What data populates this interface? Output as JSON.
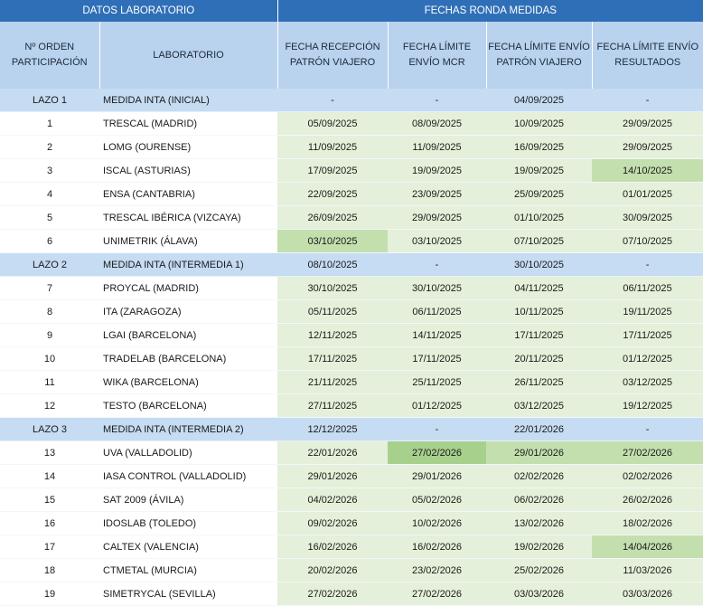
{
  "groups": {
    "left": "DATOS LABORATORIO",
    "right": "FECHAS RONDA MEDIDAS"
  },
  "headers": {
    "orden": "Nº ORDEN PARTICIPACIÓN",
    "laboratorio": "LABORATORIO",
    "recepcion": "FECHA RECEPCIÓN PATRÓN VIAJERO",
    "limite_mcr": "FECHA LÍMITE ENVÍO MCR",
    "limite_patron": "FECHA LÍMITE ENVÍO PATRÓN VIAJERO",
    "limite_resultados": "FECHA LÍMITE ENVÍO RESULTADOS"
  },
  "rows": [
    {
      "type": "loop",
      "orden": "LAZO 1",
      "lab": "MEDIDA INTA (INICIAL)",
      "recepcion": "-",
      "mcr": "-",
      "patron": "04/09/2025",
      "resultados": "-"
    },
    {
      "type": "row",
      "orden": "1",
      "lab": "TRESCAL (MADRID)",
      "recepcion": "05/09/2025",
      "mcr": "08/09/2025",
      "patron": "10/09/2025",
      "resultados": "29/09/2025"
    },
    {
      "type": "row",
      "orden": "2",
      "lab": "LOMG (OURENSE)",
      "recepcion": "11/09/2025",
      "mcr": "11/09/2025",
      "patron": "16/09/2025",
      "resultados": "29/09/2025"
    },
    {
      "type": "row",
      "orden": "3",
      "lab": "ISCAL (ASTURIAS)",
      "recepcion": "17/09/2025",
      "mcr": "19/09/2025",
      "patron": "19/09/2025",
      "resultados": "14/10/2025",
      "hl": [
        "resultados"
      ]
    },
    {
      "type": "row",
      "orden": "4",
      "lab": "ENSA (CANTABRIA)",
      "recepcion": "22/09/2025",
      "mcr": "23/09/2025",
      "patron": "25/09/2025",
      "resultados": "01/01/2025"
    },
    {
      "type": "row",
      "orden": "5",
      "lab": "TRESCAL IBÉRICA (VIZCAYA)",
      "recepcion": "26/09/2025",
      "mcr": "29/09/2025",
      "patron": "01/10/2025",
      "resultados": "30/09/2025"
    },
    {
      "type": "row",
      "orden": "6",
      "lab": "UNIMETRIK (ÁLAVA)",
      "recepcion": "03/10/2025",
      "mcr": "03/10/2025",
      "patron": "07/10/2025",
      "resultados": "07/10/2025",
      "hl": [
        "recepcion"
      ]
    },
    {
      "type": "loop",
      "orden": "LAZO 2",
      "lab": "MEDIDA INTA (INTERMEDIA 1)",
      "recepcion": "08/10/2025",
      "mcr": "-",
      "patron": "30/10/2025",
      "resultados": "-"
    },
    {
      "type": "row",
      "orden": "7",
      "lab": "PROYCAL (MADRID)",
      "recepcion": "30/10/2025",
      "mcr": "30/10/2025",
      "patron": "04/11/2025",
      "resultados": "06/11/2025"
    },
    {
      "type": "row",
      "orden": "8",
      "lab": "ITA (ZARAGOZA)",
      "recepcion": "05/11/2025",
      "mcr": "06/11/2025",
      "patron": "10/11/2025",
      "resultados": "19/11/2025"
    },
    {
      "type": "row",
      "orden": "9",
      "lab": "LGAI (BARCELONA)",
      "recepcion": "12/11/2025",
      "mcr": "14/11/2025",
      "patron": "17/11/2025",
      "resultados": "17/11/2025"
    },
    {
      "type": "row",
      "orden": "10",
      "lab": "TRADELAB (BARCELONA)",
      "recepcion": "17/11/2025",
      "mcr": "17/11/2025",
      "patron": "20/11/2025",
      "resultados": "01/12/2025"
    },
    {
      "type": "row",
      "orden": "11",
      "lab": "WIKA (BARCELONA)",
      "recepcion": "21/11/2025",
      "mcr": "25/11/2025",
      "patron": "26/11/2025",
      "resultados": "03/12/2025"
    },
    {
      "type": "row",
      "orden": "12",
      "lab": "TESTO (BARCELONA)",
      "recepcion": "27/11/2025",
      "mcr": "01/12/2025",
      "patron": "03/12/2025",
      "resultados": "19/12/2025"
    },
    {
      "type": "loop",
      "orden": "LAZO 3",
      "lab": "MEDIDA INTA (INTERMEDIA 2)",
      "recepcion": "12/12/2025",
      "mcr": "-",
      "patron": "22/01/2026",
      "resultados": "-"
    },
    {
      "type": "row",
      "orden": "13",
      "lab": "UVA (VALLADOLID)",
      "recepcion": "22/01/2026",
      "mcr": "27/02/2026",
      "patron": "29/01/2026",
      "resultados": "27/02/2026",
      "hl2": [
        "mcr"
      ],
      "hl": [
        "patron",
        "resultados"
      ]
    },
    {
      "type": "row",
      "orden": "14",
      "lab": "IASA CONTROL (VALLADOLID)",
      "recepcion": "29/01/2026",
      "mcr": "29/01/2026",
      "patron": "02/02/2026",
      "resultados": "02/02/2026"
    },
    {
      "type": "row",
      "orden": "15",
      "lab": "SAT 2009 (ÁVILA)",
      "recepcion": "04/02/2026",
      "mcr": "05/02/2026",
      "patron": "06/02/2026",
      "resultados": "26/02/2026"
    },
    {
      "type": "row",
      "orden": "16",
      "lab": "IDOSLAB (TOLEDO)",
      "recepcion": "09/02/2026",
      "mcr": "10/02/2026",
      "patron": "13/02/2026",
      "resultados": "18/02/2026"
    },
    {
      "type": "row",
      "orden": "17",
      "lab": "CALTEX (VALENCIA)",
      "recepcion": "16/02/2026",
      "mcr": "16/02/2026",
      "patron": "19/02/2026",
      "resultados": "14/04/2026",
      "hl": [
        "resultados"
      ]
    },
    {
      "type": "row",
      "orden": "18",
      "lab": "CTMETAL (MURCIA)",
      "recepcion": "20/02/2026",
      "mcr": "23/02/2026",
      "patron": "25/02/2026",
      "resultados": "11/03/2026"
    },
    {
      "type": "row",
      "orden": "19",
      "lab": "SIMETRYCAL (SEVILLA)",
      "recepcion": "27/02/2026",
      "mcr": "27/02/2026",
      "patron": "03/03/2026",
      "resultados": "03/03/2026"
    }
  ]
}
